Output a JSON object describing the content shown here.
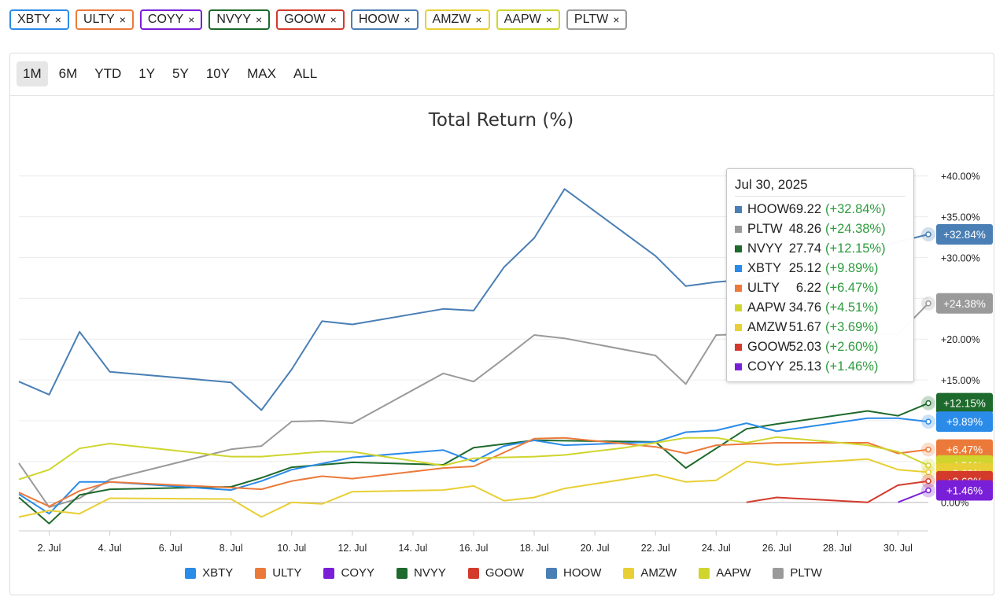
{
  "tickers": [
    {
      "symbol": "XBTY",
      "color": "#2b8be8"
    },
    {
      "symbol": "ULTY",
      "color": "#eb7a3a"
    },
    {
      "symbol": "COYY",
      "color": "#7a1fd8"
    },
    {
      "symbol": "NVYY",
      "color": "#1d6a2c"
    },
    {
      "symbol": "GOOW",
      "color": "#d33a2c"
    },
    {
      "symbol": "HOOW",
      "color": "#4a7fb5"
    },
    {
      "symbol": "AMZW",
      "color": "#e8cf35"
    },
    {
      "symbol": "AAPW",
      "color": "#cfd52c"
    },
    {
      "symbol": "PLTW",
      "color": "#9a9a9a"
    }
  ],
  "remove_glyph": "×",
  "ranges": [
    "1M",
    "6M",
    "YTD",
    "1Y",
    "5Y",
    "10Y",
    "MAX",
    "ALL"
  ],
  "active_range": "1M",
  "chart_data": {
    "type": "line",
    "title": "Total Return (%)",
    "x_ticks": [
      "2. Jul",
      "4. Jul",
      "6. Jul",
      "8. Jul",
      "10. Jul",
      "12. Jul",
      "14. Jul",
      "16. Jul",
      "18. Jul",
      "20. Jul",
      "22. Jul",
      "24. Jul",
      "26. Jul",
      "28. Jul",
      "30. Jul"
    ],
    "x_range": [
      1,
      31
    ],
    "y_ticks": [
      "0.00%",
      "+5.00%",
      "+10.00%",
      "+15.00%",
      "+20.00%",
      "+25.00%",
      "+30.00%",
      "+35.00%",
      "+40.00%"
    ],
    "ylim": [
      -3.5,
      42
    ],
    "series": [
      {
        "name": "HOOW",
        "color": "#4a7fb5",
        "end_label": "+32.84%",
        "points": [
          [
            1,
            14.8
          ],
          [
            2,
            13.2
          ],
          [
            3,
            20.9
          ],
          [
            4,
            16.0
          ],
          [
            8,
            14.7
          ],
          [
            9,
            11.3
          ],
          [
            10,
            16.3
          ],
          [
            11,
            22.2
          ],
          [
            12,
            21.8
          ],
          [
            15,
            23.7
          ],
          [
            16,
            23.5
          ],
          [
            17,
            28.8
          ],
          [
            18,
            32.4
          ],
          [
            19,
            38.4
          ],
          [
            22,
            30.2
          ],
          [
            23,
            26.5
          ],
          [
            24,
            27.0
          ],
          [
            25,
            27.3
          ],
          [
            31,
            32.84
          ]
        ]
      },
      {
        "name": "PLTW",
        "color": "#9a9a9a",
        "end_label": "+24.38%",
        "points": [
          [
            1,
            4.8
          ],
          [
            2,
            -0.6
          ],
          [
            3,
            0.5
          ],
          [
            4,
            2.8
          ],
          [
            8,
            6.5
          ],
          [
            9,
            6.9
          ],
          [
            10,
            9.9
          ],
          [
            11,
            10.0
          ],
          [
            12,
            9.7
          ],
          [
            15,
            15.8
          ],
          [
            16,
            14.8
          ],
          [
            17,
            17.6
          ],
          [
            18,
            20.5
          ],
          [
            19,
            20.1
          ],
          [
            22,
            18.0
          ],
          [
            23,
            14.5
          ],
          [
            24,
            20.5
          ],
          [
            25,
            20.6
          ],
          [
            30,
            20.6
          ],
          [
            31,
            24.38
          ]
        ]
      },
      {
        "name": "NVYY",
        "color": "#1d6a2c",
        "end_label": "+12.15%",
        "points": [
          [
            1,
            0.6
          ],
          [
            2,
            -2.6
          ],
          [
            3,
            0.9
          ],
          [
            4,
            1.6
          ],
          [
            8,
            1.9
          ],
          [
            9,
            3.0
          ],
          [
            10,
            4.3
          ],
          [
            12,
            4.9
          ],
          [
            15,
            4.6
          ],
          [
            16,
            6.7
          ],
          [
            18,
            7.6
          ],
          [
            22,
            7.4
          ],
          [
            23,
            4.2
          ],
          [
            25,
            9.0
          ],
          [
            26,
            9.6
          ],
          [
            29,
            11.2
          ],
          [
            30,
            10.6
          ],
          [
            31,
            12.15
          ]
        ]
      },
      {
        "name": "XBTY",
        "color": "#2b8be8",
        "end_label": "+9.89%",
        "points": [
          [
            1,
            1.0
          ],
          [
            2,
            -1.4
          ],
          [
            3,
            2.5
          ],
          [
            4,
            2.5
          ],
          [
            8,
            1.5
          ],
          [
            9,
            2.6
          ],
          [
            10,
            4.0
          ],
          [
            12,
            5.5
          ],
          [
            15,
            6.4
          ],
          [
            16,
            5.0
          ],
          [
            17,
            6.9
          ],
          [
            18,
            7.6
          ],
          [
            19,
            7.0
          ],
          [
            22,
            7.4
          ],
          [
            23,
            8.6
          ],
          [
            24,
            8.8
          ],
          [
            25,
            9.7
          ],
          [
            26,
            8.7
          ],
          [
            29,
            10.3
          ],
          [
            30,
            10.3
          ],
          [
            31,
            9.89
          ]
        ]
      },
      {
        "name": "ULTY",
        "color": "#eb7a3a",
        "end_label": "+6.47%",
        "points": [
          [
            1,
            1.2
          ],
          [
            2,
            -0.5
          ],
          [
            3,
            1.4
          ],
          [
            4,
            2.5
          ],
          [
            8,
            1.8
          ],
          [
            9,
            1.6
          ],
          [
            10,
            2.6
          ],
          [
            11,
            3.2
          ],
          [
            12,
            2.9
          ],
          [
            15,
            4.2
          ],
          [
            16,
            4.4
          ],
          [
            18,
            7.8
          ],
          [
            19,
            7.9
          ],
          [
            22,
            6.8
          ],
          [
            23,
            6.0
          ],
          [
            24,
            7.0
          ],
          [
            26,
            7.3
          ],
          [
            29,
            7.3
          ],
          [
            30,
            6.0
          ],
          [
            31,
            6.47
          ]
        ]
      },
      {
        "name": "AAPW",
        "color": "#cfd52c",
        "end_label": "+4.51%",
        "points": [
          [
            1,
            2.8
          ],
          [
            2,
            4.0
          ],
          [
            3,
            6.6
          ],
          [
            4,
            7.2
          ],
          [
            8,
            5.6
          ],
          [
            9,
            5.6
          ],
          [
            10,
            5.9
          ],
          [
            11,
            6.2
          ],
          [
            12,
            6.2
          ],
          [
            15,
            4.5
          ],
          [
            16,
            5.4
          ],
          [
            17,
            5.5
          ],
          [
            18,
            5.6
          ],
          [
            19,
            5.8
          ],
          [
            21,
            6.7
          ],
          [
            22,
            7.3
          ],
          [
            23,
            7.9
          ],
          [
            24,
            7.9
          ],
          [
            25,
            7.3
          ],
          [
            26,
            8.0
          ],
          [
            29,
            7.0
          ],
          [
            30,
            6.2
          ],
          [
            31,
            4.51
          ]
        ]
      },
      {
        "name": "AMZW",
        "color": "#e8cf35",
        "end_label": "+3.69%",
        "points": [
          [
            1,
            -1.8
          ],
          [
            2,
            -1.0
          ],
          [
            3,
            -1.4
          ],
          [
            4,
            0.5
          ],
          [
            8,
            0.4
          ],
          [
            9,
            -1.8
          ],
          [
            10,
            0.0
          ],
          [
            11,
            -0.2
          ],
          [
            12,
            1.3
          ],
          [
            15,
            1.5
          ],
          [
            16,
            2.0
          ],
          [
            17,
            0.2
          ],
          [
            18,
            0.6
          ],
          [
            19,
            1.7
          ],
          [
            22,
            3.4
          ],
          [
            23,
            2.5
          ],
          [
            24,
            2.7
          ],
          [
            25,
            5.0
          ],
          [
            26,
            4.6
          ],
          [
            29,
            5.3
          ],
          [
            30,
            4.0
          ],
          [
            31,
            3.69
          ]
        ]
      },
      {
        "name": "GOOW",
        "color": "#d33a2c",
        "end_label": "+2.60%",
        "points": [
          [
            25,
            0.0
          ],
          [
            26,
            0.6
          ],
          [
            29,
            0.0
          ],
          [
            30,
            2.1
          ],
          [
            31,
            2.6
          ]
        ]
      },
      {
        "name": "COYY",
        "color": "#7a1fd8",
        "end_label": "+1.46%",
        "points": [
          [
            30,
            0.0
          ],
          [
            31,
            1.46
          ]
        ]
      }
    ]
  },
  "tooltip": {
    "date": "Jul 30, 2025",
    "rows": [
      {
        "symbol": "HOOW",
        "color": "#4a7fb5",
        "value": "69.22",
        "change": "(+32.84%)"
      },
      {
        "symbol": "PLTW",
        "color": "#9a9a9a",
        "value": "48.26",
        "change": "(+24.38%)"
      },
      {
        "symbol": "NVYY",
        "color": "#1d6a2c",
        "value": "27.74",
        "change": "(+12.15%)"
      },
      {
        "symbol": "XBTY",
        "color": "#2b8be8",
        "value": "25.12",
        "change": "(+9.89%)"
      },
      {
        "symbol": "ULTY",
        "color": "#eb7a3a",
        "value": "6.22",
        "change": "(+6.47%)"
      },
      {
        "symbol": "AAPW",
        "color": "#cfd52c",
        "value": "34.76",
        "change": "(+4.51%)"
      },
      {
        "symbol": "AMZW",
        "color": "#e8cf35",
        "value": "51.67",
        "change": "(+3.69%)"
      },
      {
        "symbol": "GOOW",
        "color": "#d33a2c",
        "value": "52.03",
        "change": "(+2.60%)"
      },
      {
        "symbol": "COYY",
        "color": "#7a1fd8",
        "value": "25.13",
        "change": "(+1.46%)"
      }
    ]
  }
}
